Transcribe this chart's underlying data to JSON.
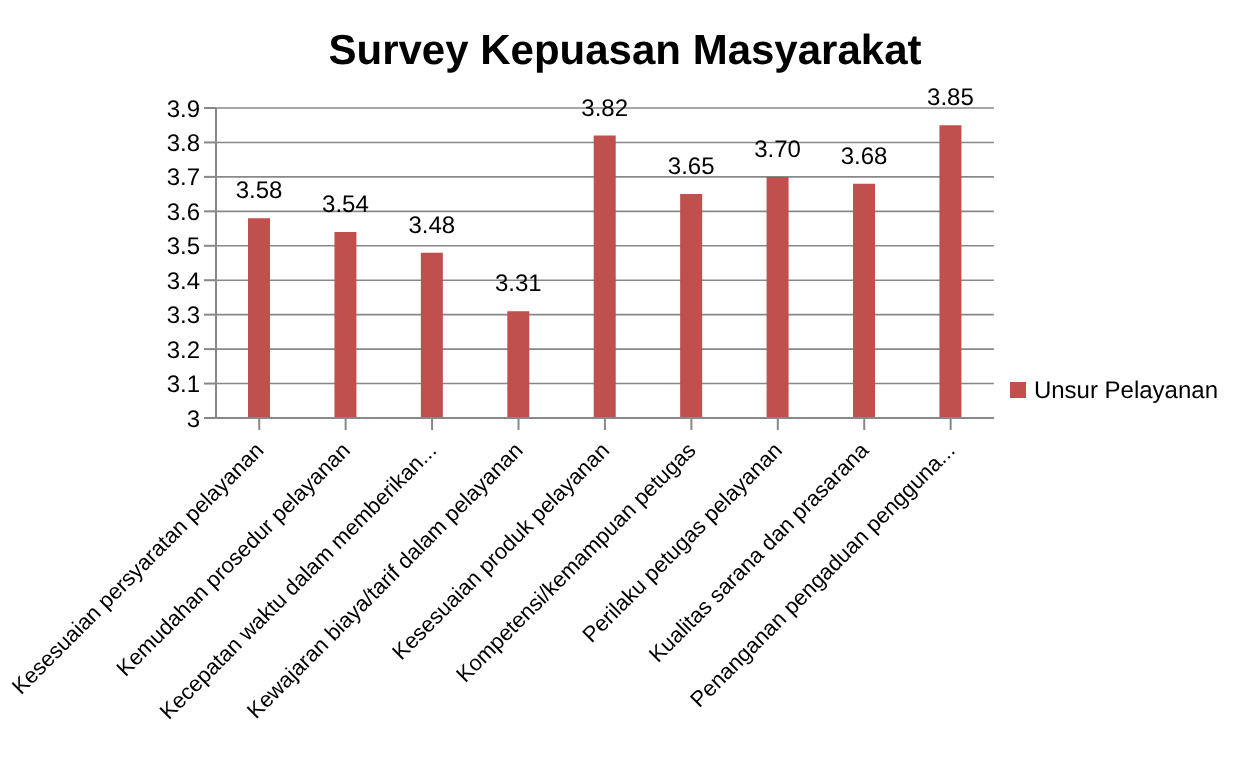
{
  "chart_data": {
    "type": "bar",
    "title": "Survey Kepuasan Masyarakat",
    "categories": [
      "Kesesuaian persyaratan pelayanan",
      "Kemudahan prosedur pelayanan",
      "Kecepatan waktu dalam memberikan...",
      "Kewajaran biaya/tarif dalam pelayanan",
      "Kesesuaian produk pelayanan",
      "Kompetensi/kemampuan petugas",
      "Perilaku petugas pelayanan",
      "Kualitas sarana dan prasarana",
      "Penanganan pengaduan pengguna..."
    ],
    "series": [
      {
        "name": "Unsur Pelayanan",
        "color": "#c0504d",
        "values": [
          3.58,
          3.54,
          3.48,
          3.31,
          3.82,
          3.65,
          3.7,
          3.68,
          3.85
        ],
        "value_labels": [
          "3.58",
          "3.54",
          "3.48",
          "3.31",
          "3.82",
          "3.65",
          "3.70",
          "3.68",
          "3.85"
        ]
      }
    ],
    "ylim": [
      3,
      3.9
    ],
    "yticks": [
      3,
      3.1,
      3.2,
      3.3,
      3.4,
      3.5,
      3.6,
      3.7,
      3.8,
      3.9
    ],
    "grid": "y",
    "legend": "right"
  }
}
